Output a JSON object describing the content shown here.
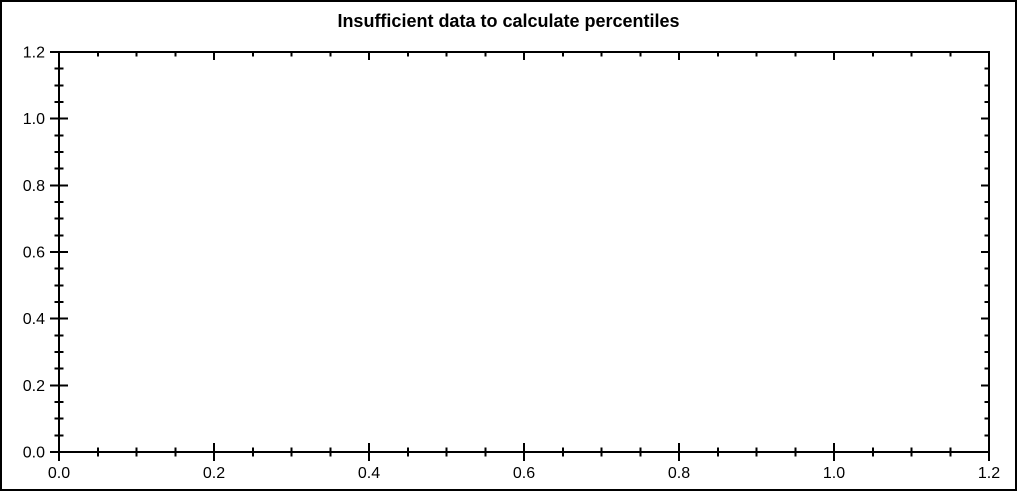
{
  "title": "Insufficient data to calculate percentiles",
  "colors": {
    "background": "#ffffff",
    "axis": "#000000",
    "text": "#000000",
    "border": "#000000"
  },
  "chart_data": {
    "type": "scatter",
    "title": "Insufficient data to calculate percentiles",
    "series": [],
    "grid": false,
    "legend": "none",
    "x_axis": {
      "min": 0.0,
      "max": 1.2,
      "major_step": 0.2,
      "minor_step": 0.05,
      "tick_labels": [
        "0.0",
        "0.2",
        "0.4",
        "0.6",
        "0.8",
        "1.0",
        "1.2"
      ],
      "label": ""
    },
    "y_axis": {
      "min": 0.0,
      "max": 1.2,
      "major_step": 0.2,
      "minor_step": 0.05,
      "tick_labels": [
        "0.0",
        "0.2",
        "0.4",
        "0.6",
        "0.8",
        "1.0",
        "1.2"
      ],
      "label": ""
    }
  }
}
